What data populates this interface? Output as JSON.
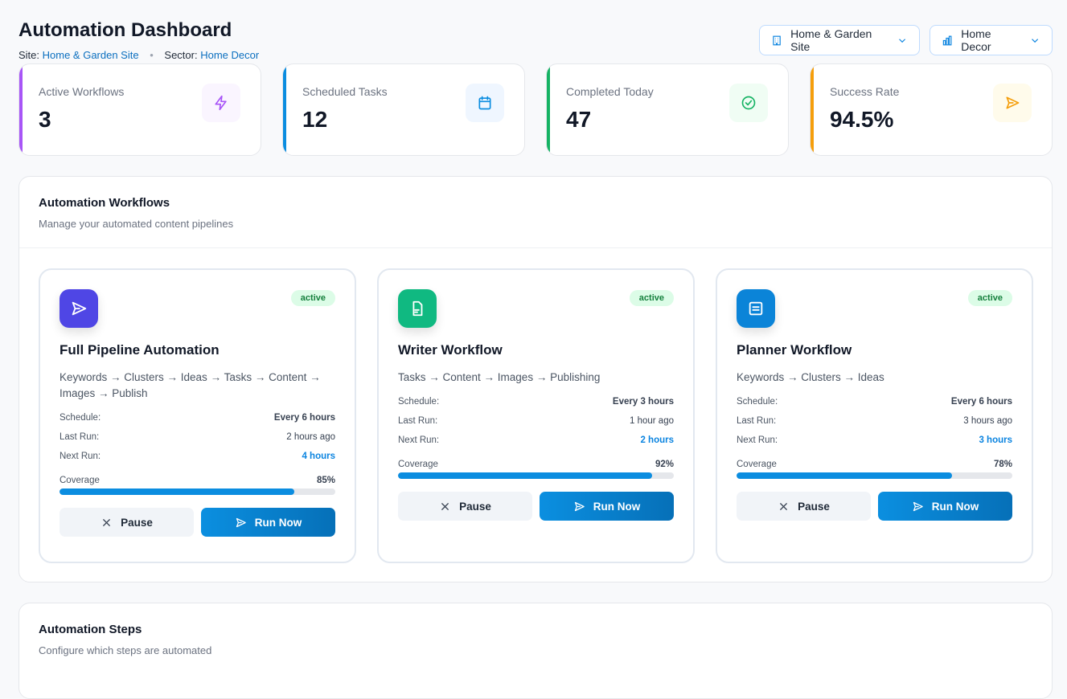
{
  "header": {
    "title": "Automation Dashboard",
    "site_label": "Site:",
    "site_value": "Home & Garden Site",
    "sector_label": "Sector:",
    "sector_value": "Home Decor",
    "separator": "•"
  },
  "selectors": {
    "site": {
      "label": "Home & Garden Site",
      "icon": "building-icon"
    },
    "sector": {
      "label": "Home Decor",
      "icon": "bar-chart-icon"
    }
  },
  "stats": [
    {
      "label": "Active Workflows",
      "value": "3",
      "color": "#a855f7",
      "icon": "lightning-icon"
    },
    {
      "label": "Scheduled Tasks",
      "value": "12",
      "color": "#0b8de0",
      "icon": "calendar-icon"
    },
    {
      "label": "Completed Today",
      "value": "47",
      "color": "#16b364",
      "icon": "check-circle-icon"
    },
    {
      "label": "Success Rate",
      "value": "94.5%",
      "color": "#f59e0b",
      "icon": "send-icon"
    }
  ],
  "workflows_panel": {
    "title": "Automation Workflows",
    "description": "Manage your automated content pipelines"
  },
  "workflow_labels": {
    "schedule": "Schedule:",
    "last_run": "Last Run:",
    "next_run": "Next Run:",
    "coverage": "Coverage",
    "pause": "Pause",
    "run_now": "Run Now"
  },
  "workflows": [
    {
      "name": "Full Pipeline Automation",
      "status": "active",
      "description": "Keywords → Clusters → Ideas → Tasks → Content → Images → Publish",
      "schedule": "Every 6 hours",
      "last_run": "2 hours ago",
      "next_run": "4 hours",
      "coverage": "85%",
      "coverage_value": 85,
      "icon": "send-icon",
      "color": "#4f46e5"
    },
    {
      "name": "Writer Workflow",
      "status": "active",
      "description": "Tasks → Content → Images → Publishing",
      "schedule": "Every 3 hours",
      "last_run": "1 hour ago",
      "next_run": "2 hours",
      "coverage": "92%",
      "coverage_value": 92,
      "icon": "document-icon",
      "color": "#10b981"
    },
    {
      "name": "Planner Workflow",
      "status": "active",
      "description": "Keywords → Clusters → Ideas",
      "schedule": "Every 6 hours",
      "last_run": "3 hours ago",
      "next_run": "3 hours",
      "coverage": "78%",
      "coverage_value": 78,
      "icon": "list-icon",
      "color": "#0b84d8"
    }
  ],
  "steps_panel": {
    "title": "Automation Steps",
    "description": "Configure which steps are automated"
  }
}
